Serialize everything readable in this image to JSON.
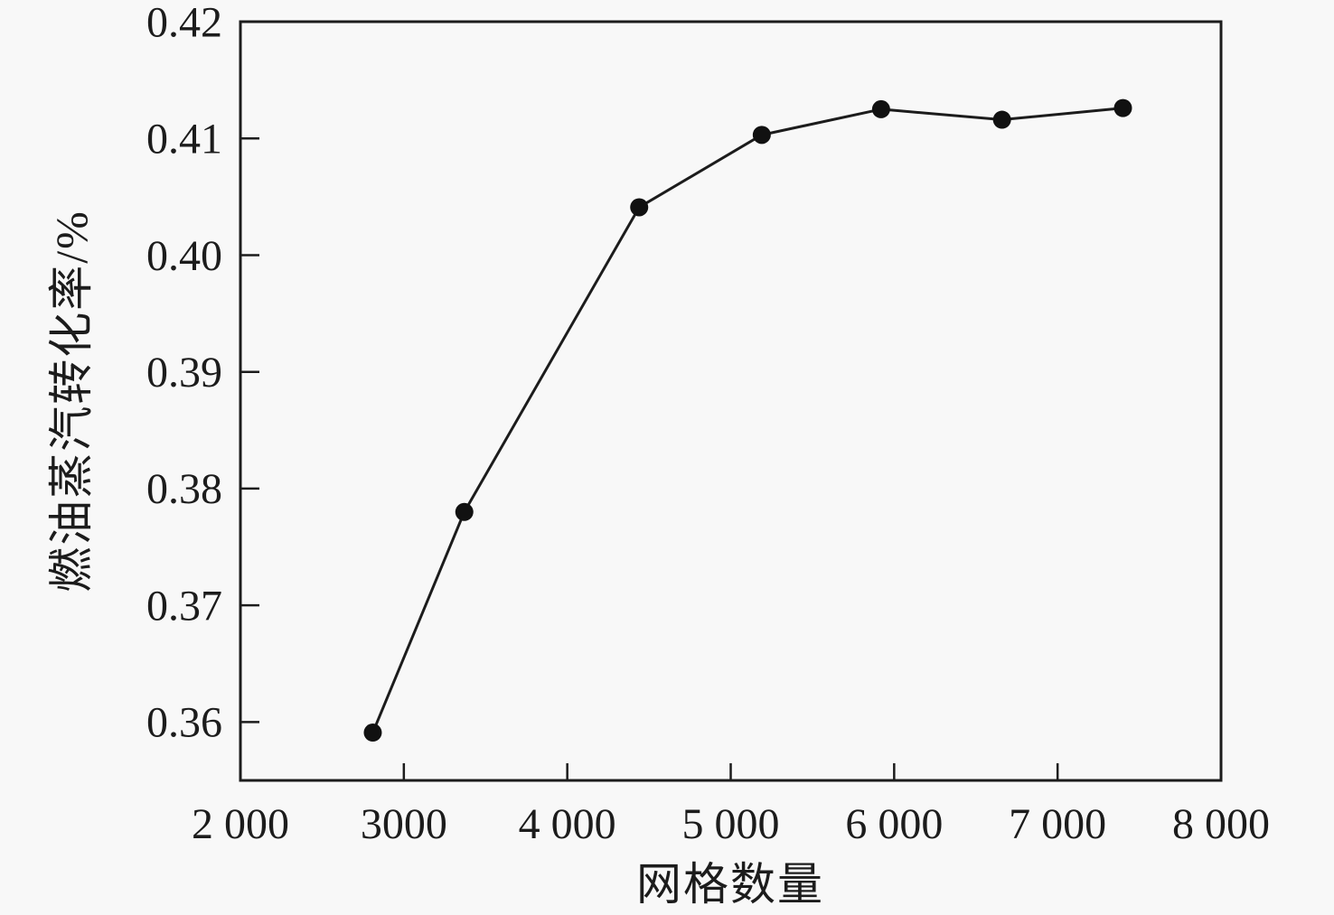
{
  "figure": {
    "background_color": "#f8f8f8",
    "text_color": "#1c1c1c"
  },
  "chart_data": {
    "type": "line",
    "title": "",
    "xlabel": "网格数量",
    "ylabel": "燃油蒸汽转化率/%",
    "xlim": [
      2000,
      8000
    ],
    "ylim": [
      0.355,
      0.42
    ],
    "grid": false,
    "legend": "none",
    "axis_color": "#1c1c1c",
    "line_color": "#1c1c1c",
    "marker": "circle",
    "marker_color": "#111111",
    "x_ticks": [
      {
        "value": 2000,
        "label": "2 000"
      },
      {
        "value": 3000,
        "label": "3000"
      },
      {
        "value": 4000,
        "label": "4 000"
      },
      {
        "value": 5000,
        "label": "5 000"
      },
      {
        "value": 6000,
        "label": "6 000"
      },
      {
        "value": 7000,
        "label": "7 000"
      },
      {
        "value": 8000,
        "label": "8 000"
      }
    ],
    "y_ticks": [
      {
        "value": 0.36,
        "label": "0.36"
      },
      {
        "value": 0.37,
        "label": "0.37"
      },
      {
        "value": 0.38,
        "label": "0.38"
      },
      {
        "value": 0.39,
        "label": "0.39"
      },
      {
        "value": 0.4,
        "label": "0.40"
      },
      {
        "value": 0.41,
        "label": "0.41"
      },
      {
        "value": 0.42,
        "label": "0.42"
      }
    ],
    "series": [
      {
        "points": [
          {
            "x": 2810,
            "y": 0.3591
          },
          {
            "x": 3370,
            "y": 0.378
          },
          {
            "x": 4440,
            "y": 0.4041
          },
          {
            "x": 5190,
            "y": 0.4103
          },
          {
            "x": 5920,
            "y": 0.4125
          },
          {
            "x": 6660,
            "y": 0.4116
          },
          {
            "x": 7400,
            "y": 0.4126
          }
        ]
      }
    ]
  }
}
